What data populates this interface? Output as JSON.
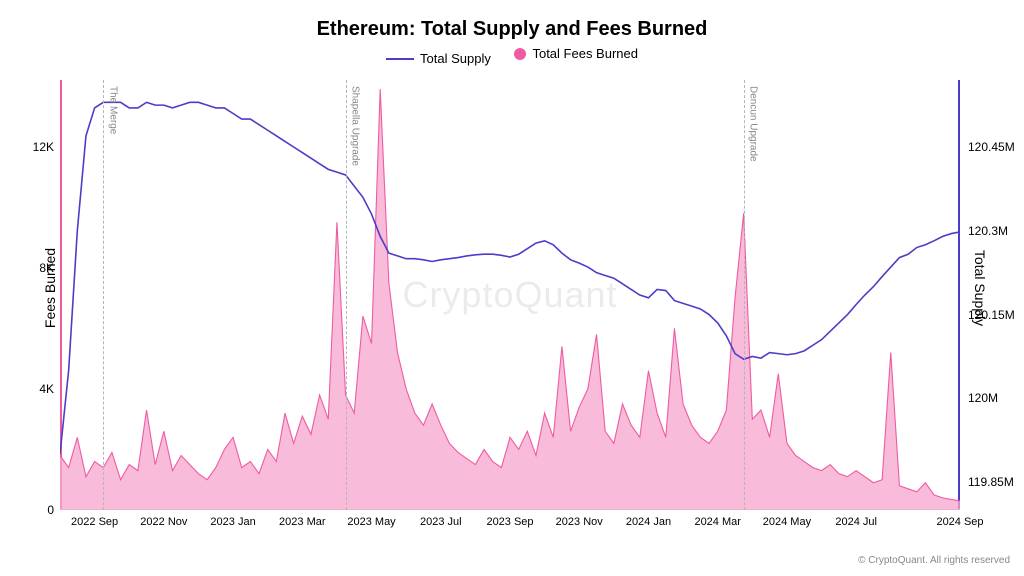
{
  "title": "Ethereum: Total Supply and Fees Burned",
  "legend": {
    "line_label": "Total Supply",
    "area_label": "Total Fees Burned"
  },
  "axes": {
    "left_label": "Fees Burned",
    "right_label": "Total Supply",
    "left_ticks": [
      0,
      4000,
      8000,
      12000
    ],
    "left_tick_labels": [
      "0",
      "4K",
      "8K",
      "12K"
    ],
    "left_min": 0,
    "left_max": 14200,
    "right_ticks": [
      119850000,
      120000000,
      120150000,
      120300000,
      120450000
    ],
    "right_tick_labels": [
      "119.85M",
      "120M",
      "120.15M",
      "120.3M",
      "120.45M"
    ],
    "right_min": 119800000,
    "right_max": 120570000,
    "x_min": 0,
    "x_max": 104,
    "x_ticks_pos": [
      4,
      12,
      20,
      28,
      36,
      44,
      52,
      60,
      68,
      76,
      84,
      92,
      100,
      104
    ],
    "x_tick_labels": [
      "2022 Sep",
      "2022 Nov",
      "2023 Jan",
      "2023 Mar",
      "2023 May",
      "2023 Jul",
      "2023 Sep",
      "2023 Nov",
      "2024 Jan",
      "2024 Mar",
      "2024 May",
      "2024 Jul",
      "",
      "2024 Sep"
    ]
  },
  "styling": {
    "line_color": "#4a3ec9",
    "line_width": 1.6,
    "area_fill": "#f6a8ce",
    "area_fill_opacity": 0.78,
    "area_stroke": "#ef5ba1",
    "area_stroke_width": 1.1,
    "background": "#ffffff",
    "annotation_line_color": "#b5b5b5",
    "title_fontsize": 20,
    "label_fontsize": 14,
    "tick_fontsize": 12,
    "watermark_text": "CryptoQuant",
    "copyright_text": "© CryptoQuant. All rights reserved"
  },
  "annotations": [
    {
      "x": 5,
      "label": "The Merge"
    },
    {
      "x": 33,
      "label": "Shapella Upgrade"
    },
    {
      "x": 79,
      "label": "Dencun Upgrade"
    }
  ],
  "fees_burned": [
    1800,
    1400,
    2400,
    1100,
    1600,
    1400,
    1900,
    1000,
    1500,
    1300,
    3300,
    1500,
    2600,
    1300,
    1800,
    1500,
    1200,
    1000,
    1400,
    2000,
    2400,
    1400,
    1600,
    1200,
    2000,
    1600,
    3200,
    2200,
    3100,
    2500,
    3800,
    3000,
    9500,
    3800,
    3200,
    6400,
    5500,
    13900,
    7500,
    5200,
    4000,
    3200,
    2800,
    3500,
    2800,
    2200,
    1900,
    1700,
    1500,
    2000,
    1600,
    1400,
    2400,
    2000,
    2600,
    1800,
    3200,
    2400,
    5400,
    2600,
    3400,
    4000,
    5800,
    2600,
    2200,
    3500,
    2800,
    2400,
    4600,
    3200,
    2400,
    6000,
    3500,
    2800,
    2400,
    2200,
    2600,
    3300,
    7000,
    9800,
    3000,
    3300,
    2400,
    4500,
    2200,
    1800,
    1600,
    1400,
    1300,
    1500,
    1200,
    1100,
    1300,
    1100,
    900,
    1000,
    5200,
    800,
    700,
    600,
    900,
    500,
    400,
    350,
    300
  ],
  "total_supply": [
    119900000,
    120050000,
    120300000,
    120470000,
    120520000,
    120530000,
    120530000,
    120530000,
    120520000,
    120520000,
    120530000,
    120525000,
    120525000,
    120520000,
    120525000,
    120530000,
    120530000,
    120525000,
    120520000,
    120520000,
    120510000,
    120500000,
    120500000,
    120490000,
    120480000,
    120470000,
    120460000,
    120450000,
    120440000,
    120430000,
    120420000,
    120410000,
    120405000,
    120400000,
    120380000,
    120360000,
    120330000,
    120290000,
    120260000,
    120255000,
    120250000,
    120250000,
    120248000,
    120245000,
    120248000,
    120250000,
    120252000,
    120255000,
    120257000,
    120258000,
    120258000,
    120256000,
    120253000,
    120258000,
    120268000,
    120278000,
    120282000,
    120275000,
    120260000,
    120248000,
    120242000,
    120235000,
    120225000,
    120220000,
    120215000,
    120205000,
    120195000,
    120185000,
    120180000,
    120195000,
    120193000,
    120175000,
    120170000,
    120165000,
    120160000,
    120150000,
    120135000,
    120112000,
    120080000,
    120070000,
    120075000,
    120072000,
    120082000,
    120080000,
    120078000,
    120080000,
    120085000,
    120095000,
    120105000,
    120120000,
    120135000,
    120150000,
    120168000,
    120185000,
    120200000,
    120218000,
    120235000,
    120252000,
    120258000,
    120270000,
    120275000,
    120282000,
    120290000,
    120295000,
    120298000
  ]
}
